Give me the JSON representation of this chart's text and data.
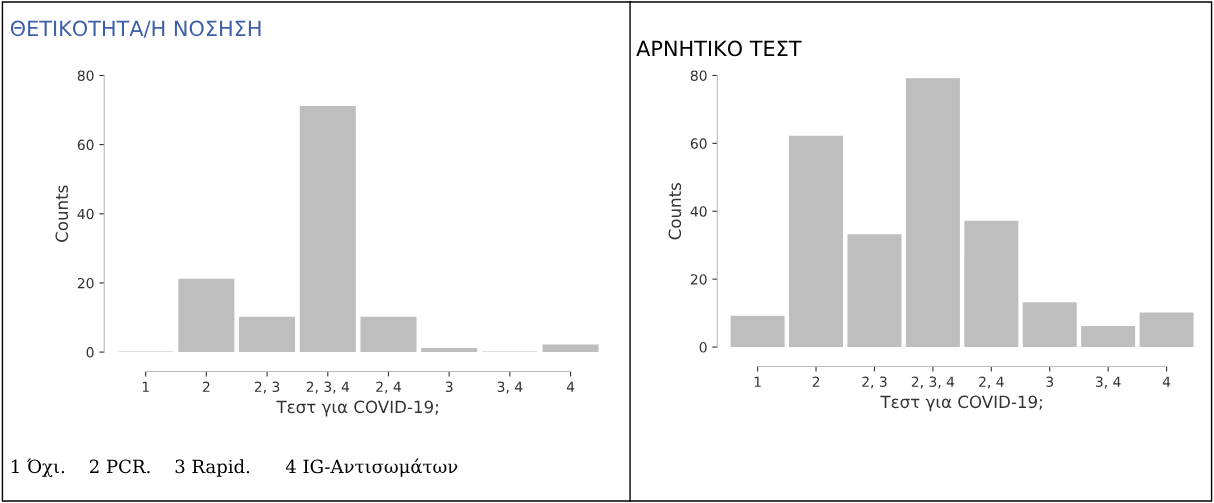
{
  "chart_data": [
    {
      "type": "bar",
      "title": "ΘΕΤΙΚΟΤΗΤΑ/Η ΝΟΣΗΣΗ",
      "xlabel": "Τεστ για COVID-19;",
      "ylabel": "Counts",
      "categories": [
        "1",
        "2",
        "2, 3",
        "2, 3, 4",
        "2, 4",
        "3",
        "3, 4",
        "4"
      ],
      "values": [
        0,
        21,
        10,
        71,
        10,
        1,
        0,
        2
      ],
      "color": "#bebebe",
      "ylim": [
        0,
        80
      ],
      "yticks": [
        0,
        20,
        40,
        60,
        80
      ],
      "grid": false,
      "annotations": [
        "1 Όχι.    2 PCR.    3 Rapid.      4 IG-Αντισωμάτων"
      ]
    },
    {
      "type": "bar",
      "title": "ΑΡΝΗΤΙΚΟ ΤΕΣΤ",
      "xlabel": "Τεστ για COVID-19;",
      "ylabel": "Counts",
      "categories": [
        "1",
        "2",
        "2, 3",
        "2, 3, 4",
        "2, 4",
        "3",
        "3, 4",
        "4"
      ],
      "values": [
        9,
        62,
        33,
        79,
        37,
        13,
        6,
        10
      ],
      "color": "#bebebe",
      "ylim": [
        0,
        80
      ],
      "yticks": [
        0,
        20,
        40,
        60,
        80
      ],
      "grid": false
    }
  ]
}
